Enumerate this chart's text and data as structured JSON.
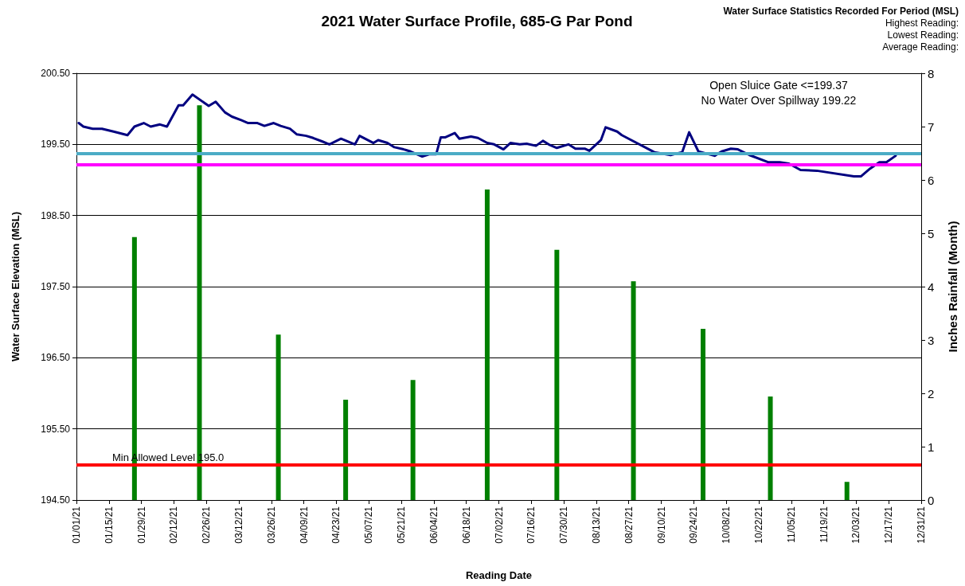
{
  "chart_data": {
    "type": "line",
    "title": "2021 Water Surface Profile, 685-G Par Pond",
    "xlabel": "Reading Date",
    "ylabel": "Water Surface Elevation (MSL)",
    "y2label": "Inches Rainfall (Month)",
    "annotations": [
      "Water Surface Statistics Recorded For Period (MSL)",
      "Highest Reading:",
      "Lowest Reading:",
      "Average Reading:",
      "Open Sluice Gate <=199.37",
      "No Water Over Spillway 199.22"
    ],
    "series": [
      {
        "type": "bar",
        "axis": "y2",
        "color": "#008000",
        "x": [
          "2021-01-26",
          "2021-02-23",
          "2021-03-29",
          "2021-04-27",
          "2021-05-26",
          "2021-06-27",
          "2021-07-27",
          "2021-08-29",
          "2021-09-28",
          "2021-10-27",
          "2021-11-29"
        ],
        "values": [
          4.93,
          7.4,
          3.1,
          1.88,
          2.25,
          5.82,
          4.69,
          4.1,
          3.21,
          1.94,
          0.34
        ]
      },
      {
        "color": "#000080",
        "x": [
          "2021-01-02",
          "2021-01-04",
          "2021-01-08",
          "2021-01-12",
          "2021-01-17",
          "2021-01-23",
          "2021-01-26",
          "2021-01-30",
          "2021-02-02",
          "2021-02-06",
          "2021-02-09",
          "2021-02-14",
          "2021-02-16",
          "2021-02-20",
          "2021-02-27",
          "2021-03-02",
          "2021-03-06",
          "2021-03-09",
          "2021-03-13",
          "2021-03-16",
          "2021-03-20",
          "2021-03-23",
          "2021-03-27",
          "2021-03-30",
          "2021-04-03",
          "2021-04-06",
          "2021-04-10",
          "2021-04-13",
          "2021-04-17",
          "2021-04-20",
          "2021-04-25",
          "2021-05-01",
          "2021-05-03",
          "2021-05-09",
          "2021-05-11",
          "2021-05-15",
          "2021-05-18",
          "2021-05-22",
          "2021-05-25",
          "2021-05-30",
          "2021-06-02",
          "2021-06-05",
          "2021-06-07",
          "2021-06-09",
          "2021-06-13",
          "2021-06-15",
          "2021-06-20",
          "2021-06-23",
          "2021-06-27",
          "2021-06-30",
          "2021-07-04",
          "2021-07-07",
          "2021-07-11",
          "2021-07-14",
          "2021-07-18",
          "2021-07-21",
          "2021-07-24",
          "2021-07-27",
          "2021-08-01",
          "2021-08-04",
          "2021-08-08",
          "2021-08-10",
          "2021-08-15",
          "2021-08-17",
          "2021-08-22",
          "2021-08-24",
          "2021-09-07",
          "2021-09-14",
          "2021-09-19",
          "2021-09-22",
          "2021-09-26",
          "2021-10-03",
          "2021-10-06",
          "2021-10-10",
          "2021-10-13",
          "2021-10-18",
          "2021-10-26",
          "2021-10-31",
          "2021-11-04",
          "2021-11-09",
          "2021-11-16",
          "2021-12-02",
          "2021-12-05",
          "2021-12-09",
          "2021-12-13",
          "2021-12-16",
          "2021-12-20"
        ],
        "values": [
          199.8,
          199.75,
          199.72,
          199.72,
          199.68,
          199.63,
          199.75,
          199.8,
          199.75,
          199.78,
          199.75,
          200.05,
          200.05,
          200.2,
          200.04,
          200.1,
          199.95,
          199.89,
          199.84,
          199.8,
          199.8,
          199.76,
          199.8,
          199.76,
          199.72,
          199.64,
          199.62,
          199.59,
          199.54,
          199.5,
          199.58,
          199.5,
          199.62,
          199.52,
          199.56,
          199.52,
          199.46,
          199.43,
          199.4,
          199.33,
          199.36,
          199.36,
          199.6,
          199.6,
          199.66,
          199.58,
          199.61,
          199.59,
          199.52,
          199.5,
          199.43,
          199.52,
          199.5,
          199.51,
          199.48,
          199.55,
          199.49,
          199.45,
          199.5,
          199.44,
          199.44,
          199.41,
          199.56,
          199.74,
          199.68,
          199.63,
          199.39,
          199.35,
          199.39,
          199.67,
          199.4,
          199.34,
          199.4,
          199.44,
          199.43,
          199.35,
          199.25,
          199.25,
          199.23,
          199.14,
          199.13,
          199.05,
          199.05,
          199.16,
          199.25,
          199.25,
          199.34
        ]
      }
    ],
    "xlim": [
      "2021-01-01",
      "2021-12-31"
    ],
    "xticks": [
      {
        "value": "2021-01-01",
        "label": "01/01/21"
      },
      {
        "value": "2021-01-15",
        "label": "01/15/21"
      },
      {
        "value": "2021-01-29",
        "label": "01/29/21"
      },
      {
        "value": "2021-02-12",
        "label": "02/12/21"
      },
      {
        "value": "2021-02-26",
        "label": "02/26/21"
      },
      {
        "value": "2021-03-12",
        "label": "03/12/21"
      },
      {
        "value": "2021-03-26",
        "label": "03/26/21"
      },
      {
        "value": "2021-04-09",
        "label": "04/09/21"
      },
      {
        "value": "2021-04-23",
        "label": "04/23/21"
      },
      {
        "value": "2021-05-07",
        "label": "05/07/21"
      },
      {
        "value": "2021-05-21",
        "label": "05/21/21"
      },
      {
        "value": "2021-06-04",
        "label": "06/04/21"
      },
      {
        "value": "2021-06-18",
        "label": "06/18/21"
      },
      {
        "value": "2021-07-02",
        "label": "07/02/21"
      },
      {
        "value": "2021-07-16",
        "label": "07/16/21"
      },
      {
        "value": "2021-07-30",
        "label": "07/30/21"
      },
      {
        "value": "2021-08-13",
        "label": "08/13/21"
      },
      {
        "value": "2021-08-27",
        "label": "08/27/21"
      },
      {
        "value": "2021-09-10",
        "label": "09/10/21"
      },
      {
        "value": "2021-09-24",
        "label": "09/24/21"
      },
      {
        "value": "2021-10-08",
        "label": "10/08/21"
      },
      {
        "value": "2021-10-22",
        "label": "10/22/21"
      },
      {
        "value": "2021-11-05",
        "label": "11/05/21"
      },
      {
        "value": "2021-11-19",
        "label": "11/19/21"
      },
      {
        "value": "2021-12-03",
        "label": "12/03/21"
      },
      {
        "value": "2021-12-17",
        "label": "12/17/21"
      },
      {
        "value": "2021-12-31",
        "label": "12/31/21"
      }
    ],
    "ylim": [
      194.5,
      200.5
    ],
    "yticks": [
      {
        "value": 194.5,
        "label": "194.50"
      },
      {
        "value": 195.5,
        "label": "195.50"
      },
      {
        "value": 196.5,
        "label": "196.50"
      },
      {
        "value": 197.5,
        "label": "197.50"
      },
      {
        "value": 198.5,
        "label": "198.50"
      },
      {
        "value": 199.5,
        "label": "199.50"
      },
      {
        "value": 200.5,
        "label": "200.50"
      }
    ],
    "y2lim": [
      0,
      8
    ],
    "y2ticks": [
      0,
      1,
      2,
      3,
      4,
      5,
      6,
      7,
      8
    ],
    "ref_lines": [
      {
        "axis": "y",
        "value": 199.37,
        "color": "#4bacc6"
      },
      {
        "axis": "y",
        "value": 199.22,
        "color": "#ff00ff"
      },
      {
        "axis": "y",
        "value": 195.0,
        "label": "Min Allowed Level 195.0",
        "color": "#ff0000"
      }
    ],
    "grid": "y",
    "marker": "none",
    "line_style": "solid"
  }
}
